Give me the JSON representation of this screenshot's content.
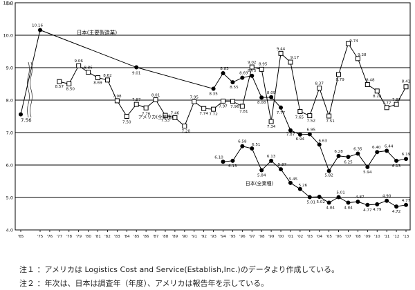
{
  "chart_data": {
    "type": "line",
    "y_unit": "(%)",
    "ylim": [
      4.0,
      11.0
    ],
    "y_ticks": [
      "4.0",
      "5.0",
      "6.0",
      "7.0",
      "8.0",
      "9.0",
      "10.0",
      "11.0"
    ],
    "grid": "horizontal",
    "x_tick_labels": [
      "'65",
      "'75",
      "'76",
      "'77",
      "'78",
      "'79",
      "'80",
      "'81",
      "'82",
      "'83",
      "'84",
      "'85",
      "'86",
      "'87",
      "'88",
      "'89",
      "'90",
      "'91",
      "'92",
      "'93",
      "'94",
      "'95",
      "'96",
      "'97",
      "'98",
      "'99",
      "'00",
      "'01",
      "'02",
      "'03",
      "'04",
      "'05",
      "'06",
      "'07",
      "'08",
      "'09",
      "'10",
      "'11",
      "'12",
      "'13"
    ],
    "series": [
      {
        "name": "日本(主要製造業)",
        "marker": "filled-circle",
        "points": [
          {
            "x": "'65",
            "y": 7.56,
            "label": "7.56"
          },
          {
            "x": "'75",
            "y": 10.16,
            "label": "10.16"
          },
          {
            "x": "'85",
            "y": 9.01,
            "label": "9.01"
          },
          {
            "x": "'93",
            "y": 8.35,
            "label": "8.35"
          },
          {
            "x": "'94",
            "y": 8.83,
            "label": "8.83"
          },
          {
            "x": "'95",
            "y": 8.55,
            "label": "8.55"
          },
          {
            "x": "'96",
            "y": 8.69,
            "label": "8.69"
          },
          {
            "x": "'97",
            "y": 8.75,
            "label": "8.75"
          },
          {
            "x": "'98",
            "y": 8.08,
            "label": "8.08"
          },
          {
            "x": "'99",
            "y": 8.09,
            "label": "8.09"
          },
          {
            "x": "'00",
            "y": 7.77,
            "label": "7.77"
          },
          {
            "x": "'01",
            "y": 7.07,
            "label": "7.07"
          },
          {
            "x": "'02",
            "y": 6.94,
            "label": "6.94"
          },
          {
            "x": "'03",
            "y": 6.95,
            "label": "6.95"
          },
          {
            "x": "'04",
            "y": 6.63,
            "label": "6.63"
          },
          {
            "x": "'05",
            "y": 5.82,
            "label": "5.82"
          }
        ]
      },
      {
        "name": "アメリカ(全業種)",
        "marker": "open-square",
        "points": [
          {
            "x": "'77",
            "y": 8.57,
            "label": "8.57"
          },
          {
            "x": "'78",
            "y": 8.5,
            "label": "8.50"
          },
          {
            "x": "'79",
            "y": 9.06,
            "label": "9.06"
          },
          {
            "x": "'80",
            "y": 8.86,
            "label": "8.86"
          },
          {
            "x": "'81",
            "y": 8.69,
            "label": "8.69"
          },
          {
            "x": "'82",
            "y": 8.62,
            "label": "8.62"
          },
          {
            "x": "'83",
            "y": 7.98,
            "label": "7.98"
          },
          {
            "x": "'84",
            "y": 7.5,
            "label": "7.50"
          },
          {
            "x": "'85",
            "y": 7.87,
            "label": "7.87"
          },
          {
            "x": "'86",
            "y": 7.76,
            "label": "7.76"
          },
          {
            "x": "'87",
            "y": 8.01,
            "label": "8.01"
          },
          {
            "x": "'88",
            "y": 7.53,
            "label": "7.53"
          },
          {
            "x": "'89",
            "y": 7.46,
            "label": "7.46"
          },
          {
            "x": "'90",
            "y": 7.2,
            "label": "7.20"
          },
          {
            "x": "'91",
            "y": 7.95,
            "label": "7.95"
          },
          {
            "x": "'92",
            "y": 7.74,
            "label": "7.74"
          },
          {
            "x": "'93",
            "y": 7.72,
            "label": "7.72"
          },
          {
            "x": "'94",
            "y": 7.97,
            "label": "7.97"
          },
          {
            "x": "'95",
            "y": 7.96,
            "label": "7.96"
          },
          {
            "x": "'96",
            "y": 7.81,
            "label": "7.81"
          },
          {
            "x": "'97",
            "y": 9.02,
            "label": "9.02"
          },
          {
            "x": "'98",
            "y": 8.95,
            "label": "8.95"
          },
          {
            "x": "'99",
            "y": 7.34,
            "label": "7.34"
          },
          {
            "x": "'00",
            "y": 9.44,
            "label": "9.44"
          },
          {
            "x": "'01",
            "y": 9.17,
            "label": "9.17"
          },
          {
            "x": "'02",
            "y": 7.65,
            "label": "7.65"
          },
          {
            "x": "'03",
            "y": 7.52,
            "label": "7.52"
          },
          {
            "x": "'04",
            "y": 8.37,
            "label": "8.37"
          },
          {
            "x": "'05",
            "y": 7.51,
            "label": "7.51"
          },
          {
            "x": "'06",
            "y": 8.79,
            "label": "8.79"
          },
          {
            "x": "'07",
            "y": 9.74,
            "label": "9.74"
          },
          {
            "x": "'08",
            "y": 9.28,
            "label": "9.28"
          },
          {
            "x": "'09",
            "y": 8.48,
            "label": "8.48"
          },
          {
            "x": "'10",
            "y": 8.28,
            "label": "8.28"
          },
          {
            "x": "'11",
            "y": 7.77,
            "label": "7.77"
          },
          {
            "x": "'12",
            "y": 7.87,
            "label": "7.87"
          },
          {
            "x": "'13",
            "y": 8.41,
            "label": "8.41"
          }
        ]
      },
      {
        "name": "日本(全業種)",
        "marker": "filled-circle",
        "points": [
          {
            "x": "'94",
            "y": 6.1,
            "label": "6.10"
          },
          {
            "x": "'95",
            "y": 6.13,
            "label": "6.13"
          },
          {
            "x": "'96",
            "y": 6.58,
            "label": "6.58"
          },
          {
            "x": "'97",
            "y": 6.51,
            "label": "6.51"
          },
          {
            "x": "'98",
            "y": 5.84,
            "label": "5.84"
          },
          {
            "x": "'99",
            "y": 6.13,
            "label": "6.13"
          },
          {
            "x": "'00",
            "y": 5.87,
            "label": "5.87"
          },
          {
            "x": "'01",
            "y": 5.45,
            "label": "5.45"
          },
          {
            "x": "'02",
            "y": 5.26,
            "label": "5.26"
          },
          {
            "x": "'03",
            "y": 5.01,
            "label": "5.01"
          },
          {
            "x": "'04",
            "y": 5.02,
            "label": "5.02"
          },
          {
            "x": "'05",
            "y": 4.84,
            "label": "4.84"
          },
          {
            "x": "'06",
            "y": 5.01,
            "label": "5.01"
          },
          {
            "x": "'07",
            "y": 4.84,
            "label": "4.84"
          },
          {
            "x": "'08",
            "y": 4.87,
            "label": "4.87"
          },
          {
            "x": "'09",
            "y": 4.77,
            "label": "4.77"
          },
          {
            "x": "'10",
            "y": 4.79,
            "label": "4.79"
          },
          {
            "x": "'11",
            "y": 4.9,
            "label": "4.90"
          },
          {
            "x": "'12",
            "y": 4.72,
            "label": "4.72"
          },
          {
            "x": "'13",
            "y": 4.77,
            "label": "4.77"
          }
        ]
      },
      {
        "name": "",
        "marker": "filled-circle",
        "points": [
          {
            "x": "'05",
            "y": 5.82,
            "label": "5.82"
          },
          {
            "x": "'06",
            "y": 6.28,
            "label": "6.28"
          },
          {
            "x": "'07",
            "y": 6.25,
            "label": "6.25"
          },
          {
            "x": "'08",
            "y": 6.35,
            "label": "6.35"
          },
          {
            "x": "'09",
            "y": 5.94,
            "label": "5.94"
          },
          {
            "x": "'10",
            "y": 6.4,
            "label": "6.40"
          },
          {
            "x": "'11",
            "y": 6.44,
            "label": "6.44"
          },
          {
            "x": "'12",
            "y": 6.13,
            "label": "6.13"
          },
          {
            "x": "'13",
            "y": 6.19,
            "label": "6.19"
          }
        ]
      }
    ]
  },
  "notes": [
    "注１ ：アメリカは Logistics Cost and Service(Establish,Inc.)のデータより作成している。",
    "注２ ：年次は、日本は調査年（年度）、アメリカは報告年を示している。"
  ]
}
